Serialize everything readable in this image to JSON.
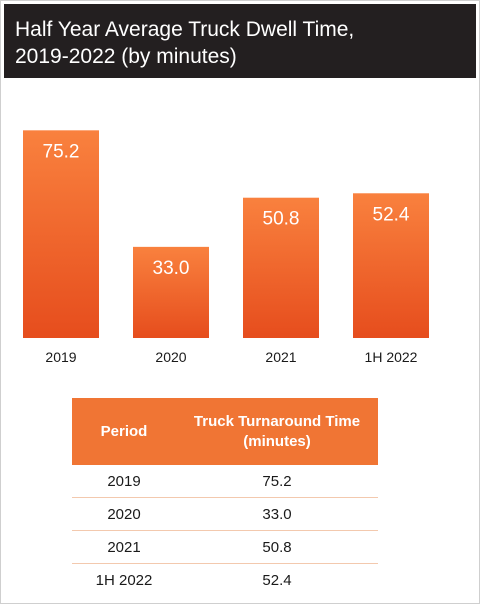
{
  "header": {
    "title_line1": "Half Year Average Truck Dwell Time,",
    "title_line2": "2019-2022 (by minutes)"
  },
  "chart_data": {
    "type": "bar",
    "title": "Half Year Average Truck Dwell Time, 2019-2022 (by minutes)",
    "categories": [
      "2019",
      "2020",
      "2021",
      "1H 2022"
    ],
    "values": [
      75.2,
      33.0,
      50.8,
      52.4
    ],
    "value_labels": [
      "75.2",
      "33.0",
      "50.8",
      "52.4"
    ],
    "ylim": [
      0,
      89.8
    ],
    "grid": false,
    "legend": "none",
    "colors": {
      "bar_top": "#f9813e",
      "bar_bottom": "#e64d1d",
      "header_bg": "#231f20",
      "table_header_bg": "#f07534"
    }
  },
  "table": {
    "headers": [
      "Period",
      "Truck Turnaround Time (minutes)"
    ],
    "header_period": "Period",
    "header_time_line1": "Truck Turnaround Time",
    "header_time_line2": "(minutes)",
    "rows": [
      {
        "period": "2019",
        "value": "75.2"
      },
      {
        "period": "2020",
        "value": "33.0"
      },
      {
        "period": "2021",
        "value": "50.8"
      },
      {
        "period": "1H 2022",
        "value": "52.4"
      }
    ]
  }
}
